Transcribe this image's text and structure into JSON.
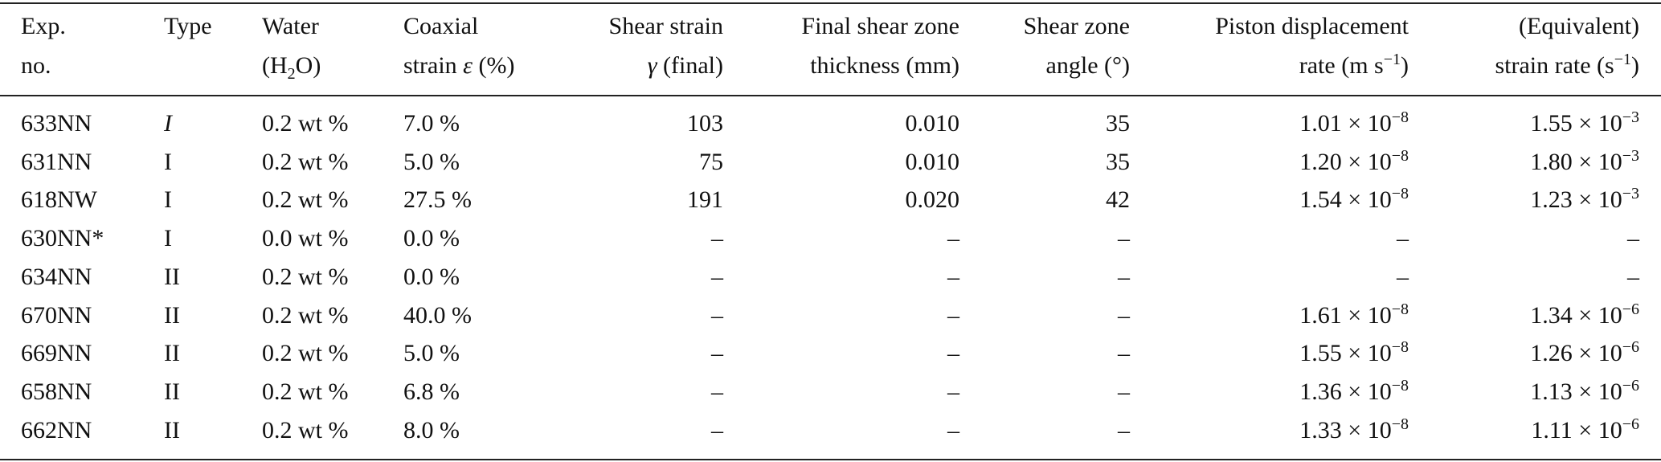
{
  "table": {
    "columns": [
      [
        [
          "Exp."
        ],
        [
          "no."
        ]
      ],
      [
        [
          "Type"
        ]
      ],
      [
        [
          "Water"
        ],
        [
          "(H",
          {
            "sub": "2"
          },
          "O)"
        ]
      ],
      [
        [
          "Coaxial"
        ],
        [
          "strain ",
          {
            "i": "ε"
          },
          " (%)"
        ]
      ],
      [
        [
          "Shear strain"
        ],
        [
          {
            "i": "γ"
          },
          " (final)"
        ]
      ],
      [
        [
          "Final shear zone"
        ],
        [
          "thickness (mm)"
        ]
      ],
      [
        [
          "Shear zone"
        ],
        [
          "angle (°)"
        ]
      ],
      [
        [
          "Piston displacement"
        ],
        [
          "rate (m s",
          {
            "sup": "−1"
          },
          ")"
        ]
      ],
      [
        [
          "(Equivalent)"
        ],
        [
          "strain rate (s",
          {
            "sup": "−1"
          },
          ")"
        ]
      ]
    ],
    "rows": [
      [
        "633NN",
        {
          "i": "I"
        },
        "0.2 wt %",
        "7.0 %",
        "103",
        "0.010",
        "35",
        {
          "base": "1.01 × 10",
          "exp": "−8"
        },
        {
          "base": "1.55 × 10",
          "exp": "−3"
        }
      ],
      [
        "631NN",
        "I",
        "0.2 wt %",
        "5.0 %",
        "75",
        "0.010",
        "35",
        {
          "base": "1.20 × 10",
          "exp": "−8"
        },
        {
          "base": "1.80 × 10",
          "exp": "−3"
        }
      ],
      [
        "618NW",
        "I",
        "0.2 wt %",
        "27.5 %",
        "191",
        "0.020",
        "42",
        {
          "base": "1.54 × 10",
          "exp": "−8"
        },
        {
          "base": "1.23 × 10",
          "exp": "−3"
        }
      ],
      [
        "630NN*",
        "I",
        "0.0 wt %",
        "0.0 %",
        "–",
        "–",
        "–",
        "–",
        "–"
      ],
      [
        "634NN",
        "II",
        "0.2 wt %",
        "0.0 %",
        "–",
        "–",
        "–",
        "–",
        "–"
      ],
      [
        "670NN",
        "II",
        "0.2 wt %",
        "40.0 %",
        "–",
        "–",
        "–",
        {
          "base": "1.61 × 10",
          "exp": "−8"
        },
        {
          "base": "1.34 × 10",
          "exp": "−6"
        }
      ],
      [
        "669NN",
        "II",
        "0.2 wt %",
        "5.0 %",
        "–",
        "–",
        "–",
        {
          "base": "1.55 × 10",
          "exp": "−8"
        },
        {
          "base": "1.26 × 10",
          "exp": "−6"
        }
      ],
      [
        "658NN",
        "II",
        "0.2 wt %",
        "6.8 %",
        "–",
        "–",
        "–",
        {
          "base": "1.36 × 10",
          "exp": "−8"
        },
        {
          "base": "1.13 × 10",
          "exp": "−6"
        }
      ],
      [
        "662NN",
        "II",
        "0.2 wt %",
        "8.0 %",
        "–",
        "–",
        "–",
        {
          "base": "1.33 × 10",
          "exp": "−8"
        },
        {
          "base": "1.11 × 10",
          "exp": "−6"
        }
      ]
    ]
  }
}
